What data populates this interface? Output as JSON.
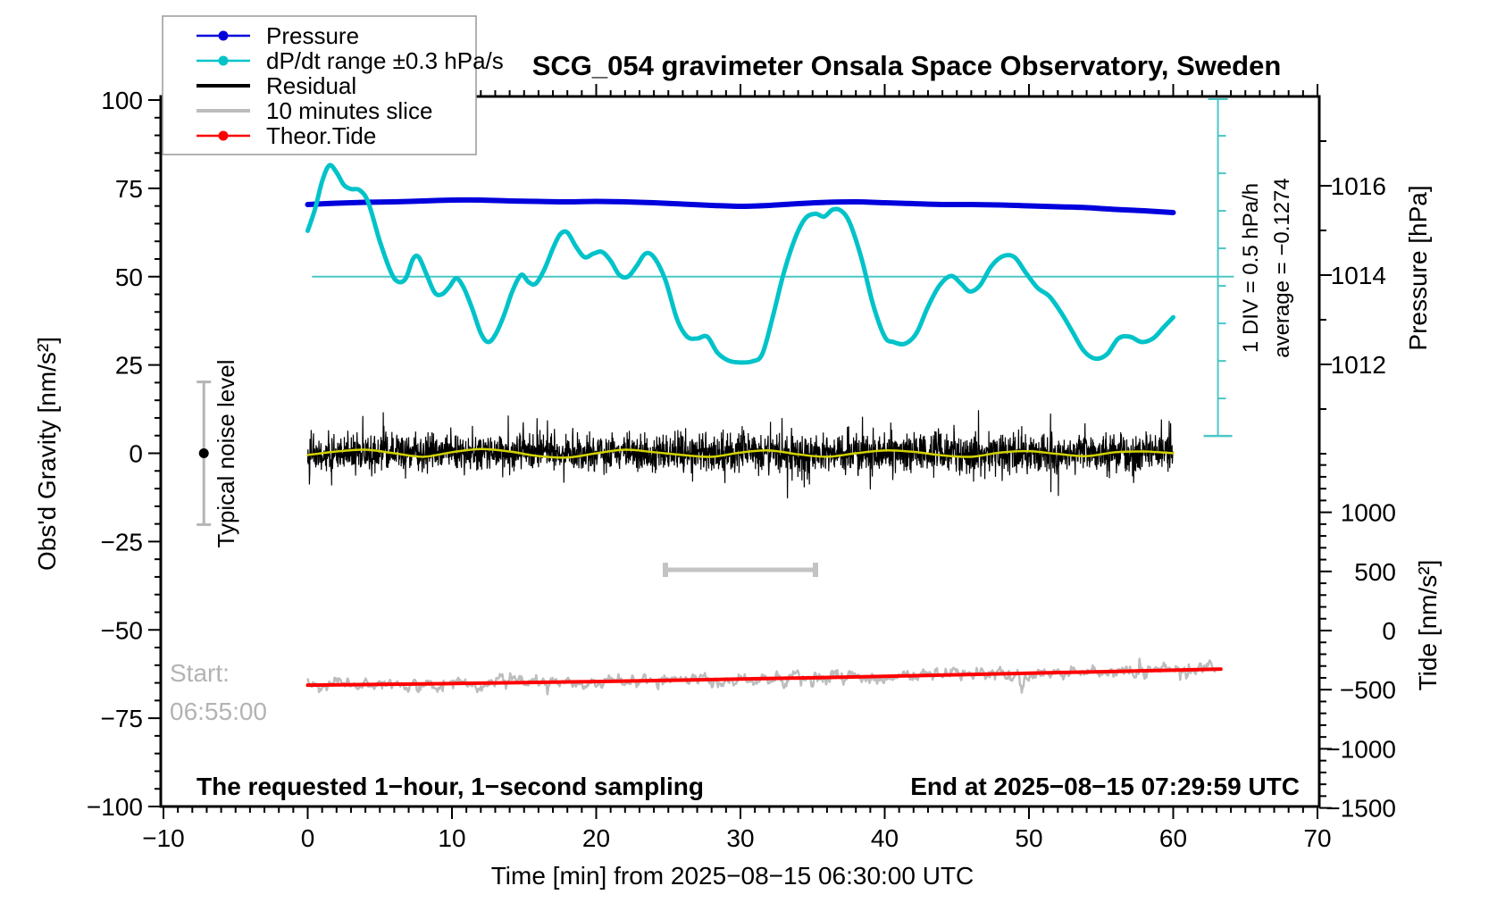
{
  "title": "SCG_054 gravimeter Onsala Space Observatory, Sweden",
  "legend": {
    "items": [
      {
        "label": "Pressure",
        "color": "#0000dd",
        "marker": true,
        "lw": 2.5
      },
      {
        "label": "dP/dt range ±0.3 hPa/s",
        "color": "#00c3c9",
        "marker": true,
        "lw": 2.5
      },
      {
        "label": "Residual",
        "color": "#000000",
        "marker": false,
        "lw": 4
      },
      {
        "label": "10 minutes slice",
        "color": "#bdbdbd",
        "marker": false,
        "lw": 4
      },
      {
        "label": "Theor.Tide",
        "color": "#ff0000",
        "marker": true,
        "lw": 2.5
      }
    ]
  },
  "annotations": {
    "noise_label": "Typical noise level",
    "start_line1": "Start:",
    "start_line2": "06:55:00",
    "sampling_note": "The requested 1−hour, 1−second sampling",
    "end_note": "End at 2025−08−15 07:29:59 UTC",
    "div_label": "1 DIV = 0.5 hPa/h",
    "average_label": "average = −0.1274"
  },
  "chart_data": {
    "type": "line",
    "title": "SCG_054 gravimeter Onsala Space Observatory, Sweden",
    "grid": false,
    "legend_position": "top-left",
    "x_axis": {
      "label": "Time [min] from 2025−08−15 06:30:00 UTC",
      "range": [
        -10,
        70
      ],
      "major_tick": 10,
      "minor_tick": 1,
      "tick_values": [
        -10,
        0,
        10,
        20,
        30,
        40,
        50,
        60,
        70
      ],
      "tick_labels": [
        "−10",
        "0",
        "10",
        "20",
        "30",
        "40",
        "50",
        "60",
        "70"
      ]
    },
    "y_left": {
      "label": "Obs'd Gravity [nm/s²]",
      "range": [
        -100,
        100
      ],
      "major_tick": 25,
      "minor_tick": 5,
      "tick_values": [
        100,
        75,
        50,
        25,
        0,
        -25,
        -50,
        -75,
        -100
      ],
      "tick_labels": [
        "100",
        "75",
        "50",
        "25",
        "0",
        "−25",
        "−50",
        "−75",
        "−100"
      ]
    },
    "y_right_pressure": {
      "label": "Pressure [hPa]",
      "tick_values": [
        1016,
        1014,
        1012
      ],
      "tick_labels": [
        "1016",
        "1014",
        "1012"
      ],
      "minor_tick": 1,
      "minor_range": [
        1010,
        1017
      ]
    },
    "y_right_tide": {
      "label": "Tide [nm/s²]",
      "tick_values": [
        1000,
        500,
        0,
        -500,
        -1000,
        -1500
      ],
      "tick_labels": [
        "1000",
        "500",
        "0",
        "−500",
        "−1000",
        "−1500"
      ],
      "minor_tick": 100,
      "minor_range": [
        -1500,
        1400
      ]
    },
    "series": [
      {
        "name": "Pressure",
        "axis": "pressure",
        "color": "#0000dd",
        "lw": 6,
        "points": [
          [
            0,
            1015.58
          ],
          [
            2,
            1015.61
          ],
          [
            4,
            1015.63
          ],
          [
            6,
            1015.64
          ],
          [
            8,
            1015.66
          ],
          [
            10,
            1015.68
          ],
          [
            12,
            1015.68
          ],
          [
            14,
            1015.66
          ],
          [
            16,
            1015.65
          ],
          [
            18,
            1015.64
          ],
          [
            20,
            1015.65
          ],
          [
            22,
            1015.64
          ],
          [
            24,
            1015.62
          ],
          [
            26,
            1015.59
          ],
          [
            28,
            1015.56
          ],
          [
            30,
            1015.54
          ],
          [
            32,
            1015.56
          ],
          [
            34,
            1015.6
          ],
          [
            36,
            1015.63
          ],
          [
            38,
            1015.64
          ],
          [
            40,
            1015.62
          ],
          [
            42,
            1015.6
          ],
          [
            44,
            1015.58
          ],
          [
            46,
            1015.58
          ],
          [
            48,
            1015.57
          ],
          [
            50,
            1015.55
          ],
          [
            52,
            1015.53
          ],
          [
            54,
            1015.51
          ],
          [
            56,
            1015.47
          ],
          [
            58,
            1015.44
          ],
          [
            60,
            1015.4
          ]
        ]
      },
      {
        "name": "dP/dt range ±0.3 hPa/s",
        "axis": "gravity",
        "color": "#00c3c9",
        "lw": 5,
        "points": [
          [
            0,
            63
          ],
          [
            0.5,
            69
          ],
          [
            1,
            77
          ],
          [
            1.5,
            81.5
          ],
          [
            2,
            79.5
          ],
          [
            2.5,
            76
          ],
          [
            3,
            74.8
          ],
          [
            3.6,
            74.5
          ],
          [
            4.2,
            71
          ],
          [
            5,
            60
          ],
          [
            5.8,
            51
          ],
          [
            6.3,
            48.5
          ],
          [
            6.8,
            49.5
          ],
          [
            7.3,
            55
          ],
          [
            7.7,
            55.5
          ],
          [
            8.2,
            51
          ],
          [
            8.8,
            45.5
          ],
          [
            9.3,
            45
          ],
          [
            9.8,
            47
          ],
          [
            10.3,
            49.5
          ],
          [
            10.8,
            47
          ],
          [
            11.4,
            41
          ],
          [
            12,
            34
          ],
          [
            12.5,
            31.5
          ],
          [
            13,
            33.5
          ],
          [
            13.6,
            39
          ],
          [
            14.2,
            46
          ],
          [
            14.8,
            50.5
          ],
          [
            15.3,
            48.5
          ],
          [
            15.8,
            48
          ],
          [
            16.4,
            52
          ],
          [
            17,
            58
          ],
          [
            17.5,
            62
          ],
          [
            18,
            62.5
          ],
          [
            18.6,
            58.5
          ],
          [
            19.2,
            55.5
          ],
          [
            19.8,
            56.5
          ],
          [
            20.4,
            57
          ],
          [
            21,
            54.5
          ],
          [
            21.6,
            50.5
          ],
          [
            22.2,
            50
          ],
          [
            22.8,
            53
          ],
          [
            23.4,
            56.5
          ],
          [
            24,
            55.5
          ],
          [
            24.8,
            49
          ],
          [
            25.6,
            38
          ],
          [
            26.3,
            33
          ],
          [
            27,
            32.5
          ],
          [
            27.7,
            33
          ],
          [
            28.4,
            28.5
          ],
          [
            29.2,
            26.2
          ],
          [
            30,
            25.7
          ],
          [
            30.8,
            26
          ],
          [
            31.5,
            28
          ],
          [
            32.2,
            38
          ],
          [
            33,
            51
          ],
          [
            33.8,
            61
          ],
          [
            34.5,
            66.5
          ],
          [
            35.2,
            67.8
          ],
          [
            35.8,
            67
          ],
          [
            36.4,
            69
          ],
          [
            37,
            68.6
          ],
          [
            37.6,
            65
          ],
          [
            38.4,
            55
          ],
          [
            39.2,
            42
          ],
          [
            40,
            33
          ],
          [
            40.6,
            31.5
          ],
          [
            41.4,
            31
          ],
          [
            42.2,
            34
          ],
          [
            43,
            41.5
          ],
          [
            43.8,
            47.5
          ],
          [
            44.6,
            50.2
          ],
          [
            45.3,
            48
          ],
          [
            45.9,
            45.8
          ],
          [
            46.6,
            47.5
          ],
          [
            47.4,
            53
          ],
          [
            48.2,
            55.8
          ],
          [
            49,
            55.5
          ],
          [
            49.8,
            51
          ],
          [
            50.6,
            46.8
          ],
          [
            51.4,
            44.5
          ],
          [
            52.2,
            40
          ],
          [
            53,
            34.5
          ],
          [
            53.8,
            29
          ],
          [
            54.6,
            26.8
          ],
          [
            55.4,
            28
          ],
          [
            56.2,
            32.5
          ],
          [
            57,
            33
          ],
          [
            57.8,
            31.5
          ],
          [
            58.6,
            32.5
          ],
          [
            59.3,
            35.5
          ],
          [
            60,
            38.5
          ]
        ]
      },
      {
        "name": "Residual",
        "axis": "gravity",
        "color": "#000000",
        "lw": 1.2,
        "render": "noise",
        "mean": 0,
        "sigma": 3,
        "spike": 9,
        "t_range": [
          0,
          60
        ],
        "step": 0.02,
        "seed": 42
      },
      {
        "name": "Residual smoothed",
        "axis": "gravity",
        "color": "#d2d200",
        "lw": 2.5,
        "points": [
          [
            0,
            -0.5
          ],
          [
            2,
            0.5
          ],
          [
            4,
            1
          ],
          [
            6,
            0
          ],
          [
            8,
            -1
          ],
          [
            10,
            0.3
          ],
          [
            12,
            1.2
          ],
          [
            14,
            0.5
          ],
          [
            16,
            -0.8
          ],
          [
            18,
            -1.2
          ],
          [
            20,
            0
          ],
          [
            22,
            1
          ],
          [
            24,
            0.3
          ],
          [
            26,
            -0.5
          ],
          [
            28,
            -1
          ],
          [
            30,
            0.2
          ],
          [
            32,
            0.8
          ],
          [
            34,
            -0.3
          ],
          [
            36,
            -1
          ],
          [
            38,
            0
          ],
          [
            40,
            0.8
          ],
          [
            42,
            0.4
          ],
          [
            44,
            -0.6
          ],
          [
            46,
            -1
          ],
          [
            48,
            0.2
          ],
          [
            50,
            0.6
          ],
          [
            52,
            -0.2
          ],
          [
            54,
            -0.8
          ],
          [
            56,
            0.3
          ],
          [
            58,
            0.5
          ],
          [
            60,
            0
          ]
        ]
      },
      {
        "name": "10 minutes slice",
        "axis": "tide",
        "color": "#bdbdbd",
        "lw": 2.5,
        "render": "noise_around_tide",
        "sigma": 55,
        "t_range": [
          0,
          63
        ],
        "step": 0.06,
        "seed": 7
      },
      {
        "name": "Theor.Tide",
        "axis": "tide",
        "color": "#ff0000",
        "lw": 4,
        "points": [
          [
            0,
            -462
          ],
          [
            5,
            -455
          ],
          [
            10,
            -448
          ],
          [
            15,
            -440
          ],
          [
            20,
            -431
          ],
          [
            25,
            -421
          ],
          [
            30,
            -410
          ],
          [
            35,
            -399
          ],
          [
            40,
            -387
          ],
          [
            45,
            -374
          ],
          [
            50,
            -361
          ],
          [
            55,
            -348
          ],
          [
            60,
            -335
          ],
          [
            63.3,
            -326
          ]
        ]
      }
    ],
    "reference_line": {
      "axis": "gravity",
      "value": 50,
      "t_range": [
        0.3,
        64.2
      ],
      "color": "#4cc6c6",
      "lw": 2
    },
    "drift_scale_bar": {
      "t": 63.1,
      "value_top": 100.5,
      "value_bottom": 4.9,
      "divisions": 9,
      "color": "#4cc6c6"
    },
    "noise_errorbar": {
      "t": -7.2,
      "value": 0,
      "half_range": 20.2,
      "color": "#b5b5b5"
    },
    "ten_minute_bar": {
      "t_start": 24.8,
      "t_end": 35.2,
      "value": -33,
      "color": "#c3c3c3"
    }
  }
}
